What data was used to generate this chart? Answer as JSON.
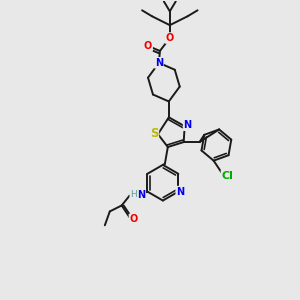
{
  "bg_color": "#e8e8e8",
  "bond_color": "#1a1a1a",
  "bond_width": 1.4,
  "atom_colors": {
    "N": "#0000ee",
    "O": "#ee0000",
    "S": "#bbbb00",
    "Cl": "#00aa00",
    "C": "#1a1a1a",
    "H": "#5a9a9a"
  },
  "font_size": 7.0
}
